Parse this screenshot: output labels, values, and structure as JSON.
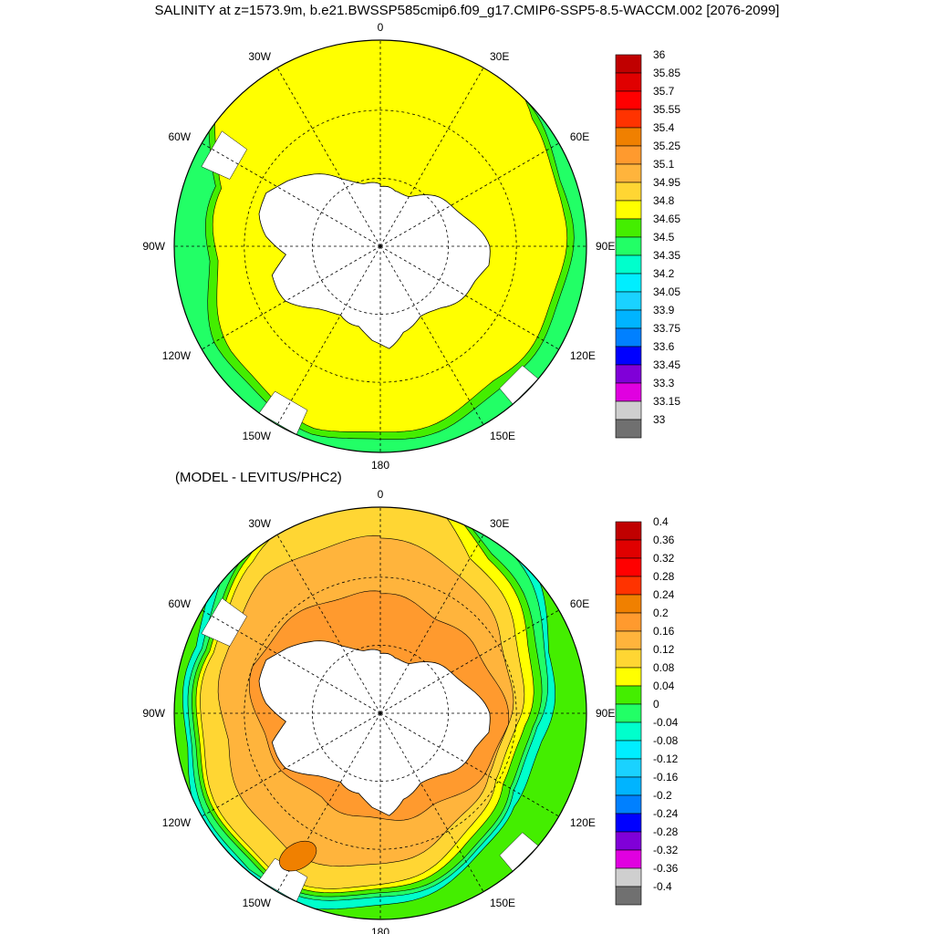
{
  "title": "SALINITY at z=1573.9m, b.e21.BWSSP585cmip6.f09_g17.CMIP6-SSP5-8.5-WACCM.002 [2076-2099]",
  "subtitle": "(MODEL - LEVITUS/PHC2)",
  "chart_data": [
    {
      "type": "heatmap",
      "projection": "south polar stereographic",
      "title": "SALINITY at z=1573.9m, b.e21.BWSSP585cmip6.f09_g17.CMIP6-SSP5-8.5-WACCM.002 [2076-2099]",
      "lon_labels": [
        "0",
        "30E",
        "60E",
        "90E",
        "120E",
        "150E",
        "180",
        "150W",
        "120W",
        "90W",
        "60W",
        "30W"
      ],
      "colorbar": {
        "levels": [
          "36",
          "35.85",
          "35.7",
          "35.55",
          "35.4",
          "35.25",
          "35.1",
          "34.95",
          "34.8",
          "34.65",
          "34.5",
          "34.35",
          "34.2",
          "34.05",
          "33.9",
          "33.75",
          "33.6",
          "33.45",
          "33.3",
          "33.15",
          "33"
        ],
        "colors": [
          "#c00000",
          "#e00000",
          "#ff0000",
          "#ff3300",
          "#f08000",
          "#ff9a2e",
          "#ffb43c",
          "#ffd633",
          "#ffff00",
          "#44ee00",
          "#22ff66",
          "#00ffcc",
          "#00eeff",
          "#1ad2ff",
          "#00b4ff",
          "#0080ff",
          "#0000ff",
          "#8000d8",
          "#e000e0",
          "#cfcfcf",
          "#707070"
        ]
      },
      "field": {
        "dominant_range": "34.8 – 34.95",
        "outer_band_range": "34.65 – 34.8",
        "outer_edge_range": "34.5 – 34.65"
      }
    },
    {
      "type": "heatmap",
      "projection": "south polar stereographic",
      "title": "(MODEL - LEVITUS/PHC2)",
      "lon_labels": [
        "0",
        "30E",
        "60E",
        "90E",
        "120E",
        "150E",
        "180",
        "150W",
        "120W",
        "90W",
        "60W",
        "30W"
      ],
      "colorbar": {
        "levels": [
          "0.4",
          "0.36",
          "0.32",
          "0.28",
          "0.24",
          "0.2",
          "0.16",
          "0.12",
          "0.08",
          "0.04",
          "0",
          "-0.04",
          "-0.08",
          "-0.12",
          "-0.16",
          "-0.2",
          "-0.24",
          "-0.28",
          "-0.32",
          "-0.36",
          "-0.4"
        ],
        "colors": [
          "#c00000",
          "#e00000",
          "#ff0000",
          "#ff3300",
          "#f08000",
          "#ff9a2e",
          "#ffb43c",
          "#ffd633",
          "#ffff00",
          "#44ee00",
          "#22ff66",
          "#00ffcc",
          "#00eeff",
          "#1ad2ff",
          "#00b4ff",
          "#0080ff",
          "#0000ff",
          "#8000d8",
          "#e000e0",
          "#cfcfcf",
          "#707070"
        ]
      },
      "field": {
        "near_antarctic_range": "0.2 – 0.24",
        "mid_ocean_range": "0.12 – 0.16",
        "outer_ring_range": "0.04 – 0.12",
        "indian_sector_min_range": "-0.08 – -0.04"
      }
    }
  ],
  "colors": {
    "land": "#ffffff",
    "grid": "#000000",
    "top_main": "#ffff00",
    "top_outer": "#44ee00",
    "top_edge": "#22ff66",
    "bottom_inner": "#ff9a2e",
    "bottom_mid": "#ffb43c",
    "bottom_ring1": "#ffd633",
    "bottom_ring2": "#ffff00",
    "bottom_ring3": "#44ee00",
    "bottom_ring4": "#22ff66",
    "bottom_ring5": "#00ffcc",
    "bottom_max": "#f08000"
  }
}
